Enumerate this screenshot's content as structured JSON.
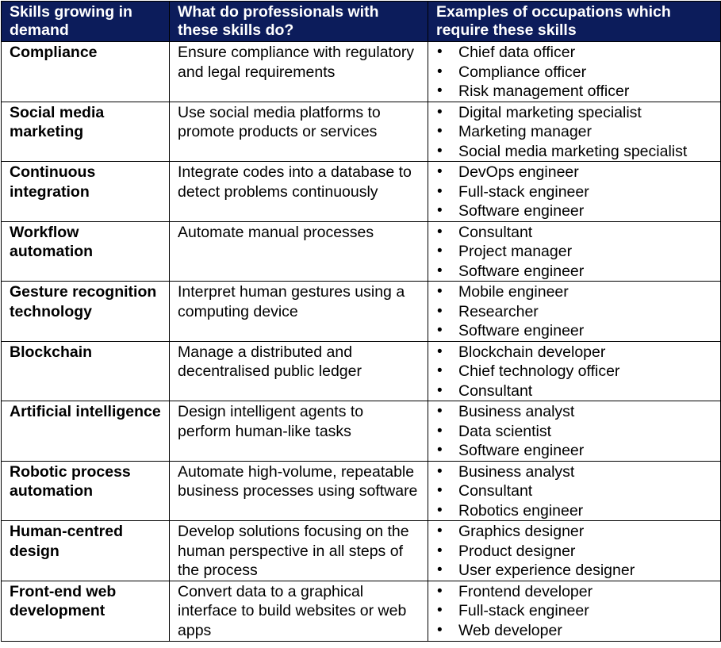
{
  "header": {
    "col1": "Skills growing in demand",
    "col2": "What do professionals with these skills do?",
    "col3": "Examples of occupations which require these skills"
  },
  "rows": [
    {
      "skill": "Compliance",
      "description": "Ensure compliance with regulatory and legal requirements",
      "occupations": [
        "Chief data officer",
        "Compliance officer",
        "Risk management officer"
      ]
    },
    {
      "skill": "Social media marketing",
      "description": "Use social media platforms to promote products or services",
      "occupations": [
        "Digital marketing specialist",
        "Marketing manager",
        "Social media marketing specialist"
      ]
    },
    {
      "skill": "Continuous integration",
      "description": "Integrate codes into a database to detect problems continuously",
      "occupations": [
        "DevOps engineer",
        "Full-stack engineer",
        "Software engineer"
      ]
    },
    {
      "skill": "Workflow automation",
      "description": "Automate manual processes",
      "occupations": [
        "Consultant",
        "Project manager",
        "Software engineer"
      ]
    },
    {
      "skill": "Gesture recognition technology",
      "description": "Interpret human gestures using a computing device",
      "occupations": [
        "Mobile engineer",
        "Researcher",
        "Software engineer"
      ]
    },
    {
      "skill": "Blockchain",
      "description": "Manage a distributed and decentralised public ledger",
      "occupations": [
        "Blockchain developer",
        "Chief technology officer",
        "Consultant"
      ]
    },
    {
      "skill": "Artificial intelligence",
      "description": "Design intelligent agents to perform human-like tasks",
      "occupations": [
        "Business analyst",
        "Data scientist",
        "Software engineer"
      ]
    },
    {
      "skill": "Robotic process automation",
      "description": "Automate high-volume, repeatable business processes using software",
      "occupations": [
        "Business analyst",
        "Consultant",
        "Robotics engineer"
      ]
    },
    {
      "skill": "Human-centred design",
      "description": "Develop solutions focusing on the human perspective in all steps of the process",
      "occupations": [
        "Graphics designer",
        "Product designer",
        "User experience designer"
      ]
    },
    {
      "skill": "Front-end web development",
      "description": "Convert data to a graphical interface to build websites or web apps",
      "occupations": [
        "Frontend developer",
        "Full-stack engineer",
        "Web developer"
      ]
    }
  ],
  "colors": {
    "header_bg": "#0c1c5b",
    "header_text": "#ffffff",
    "border": "#000000"
  }
}
